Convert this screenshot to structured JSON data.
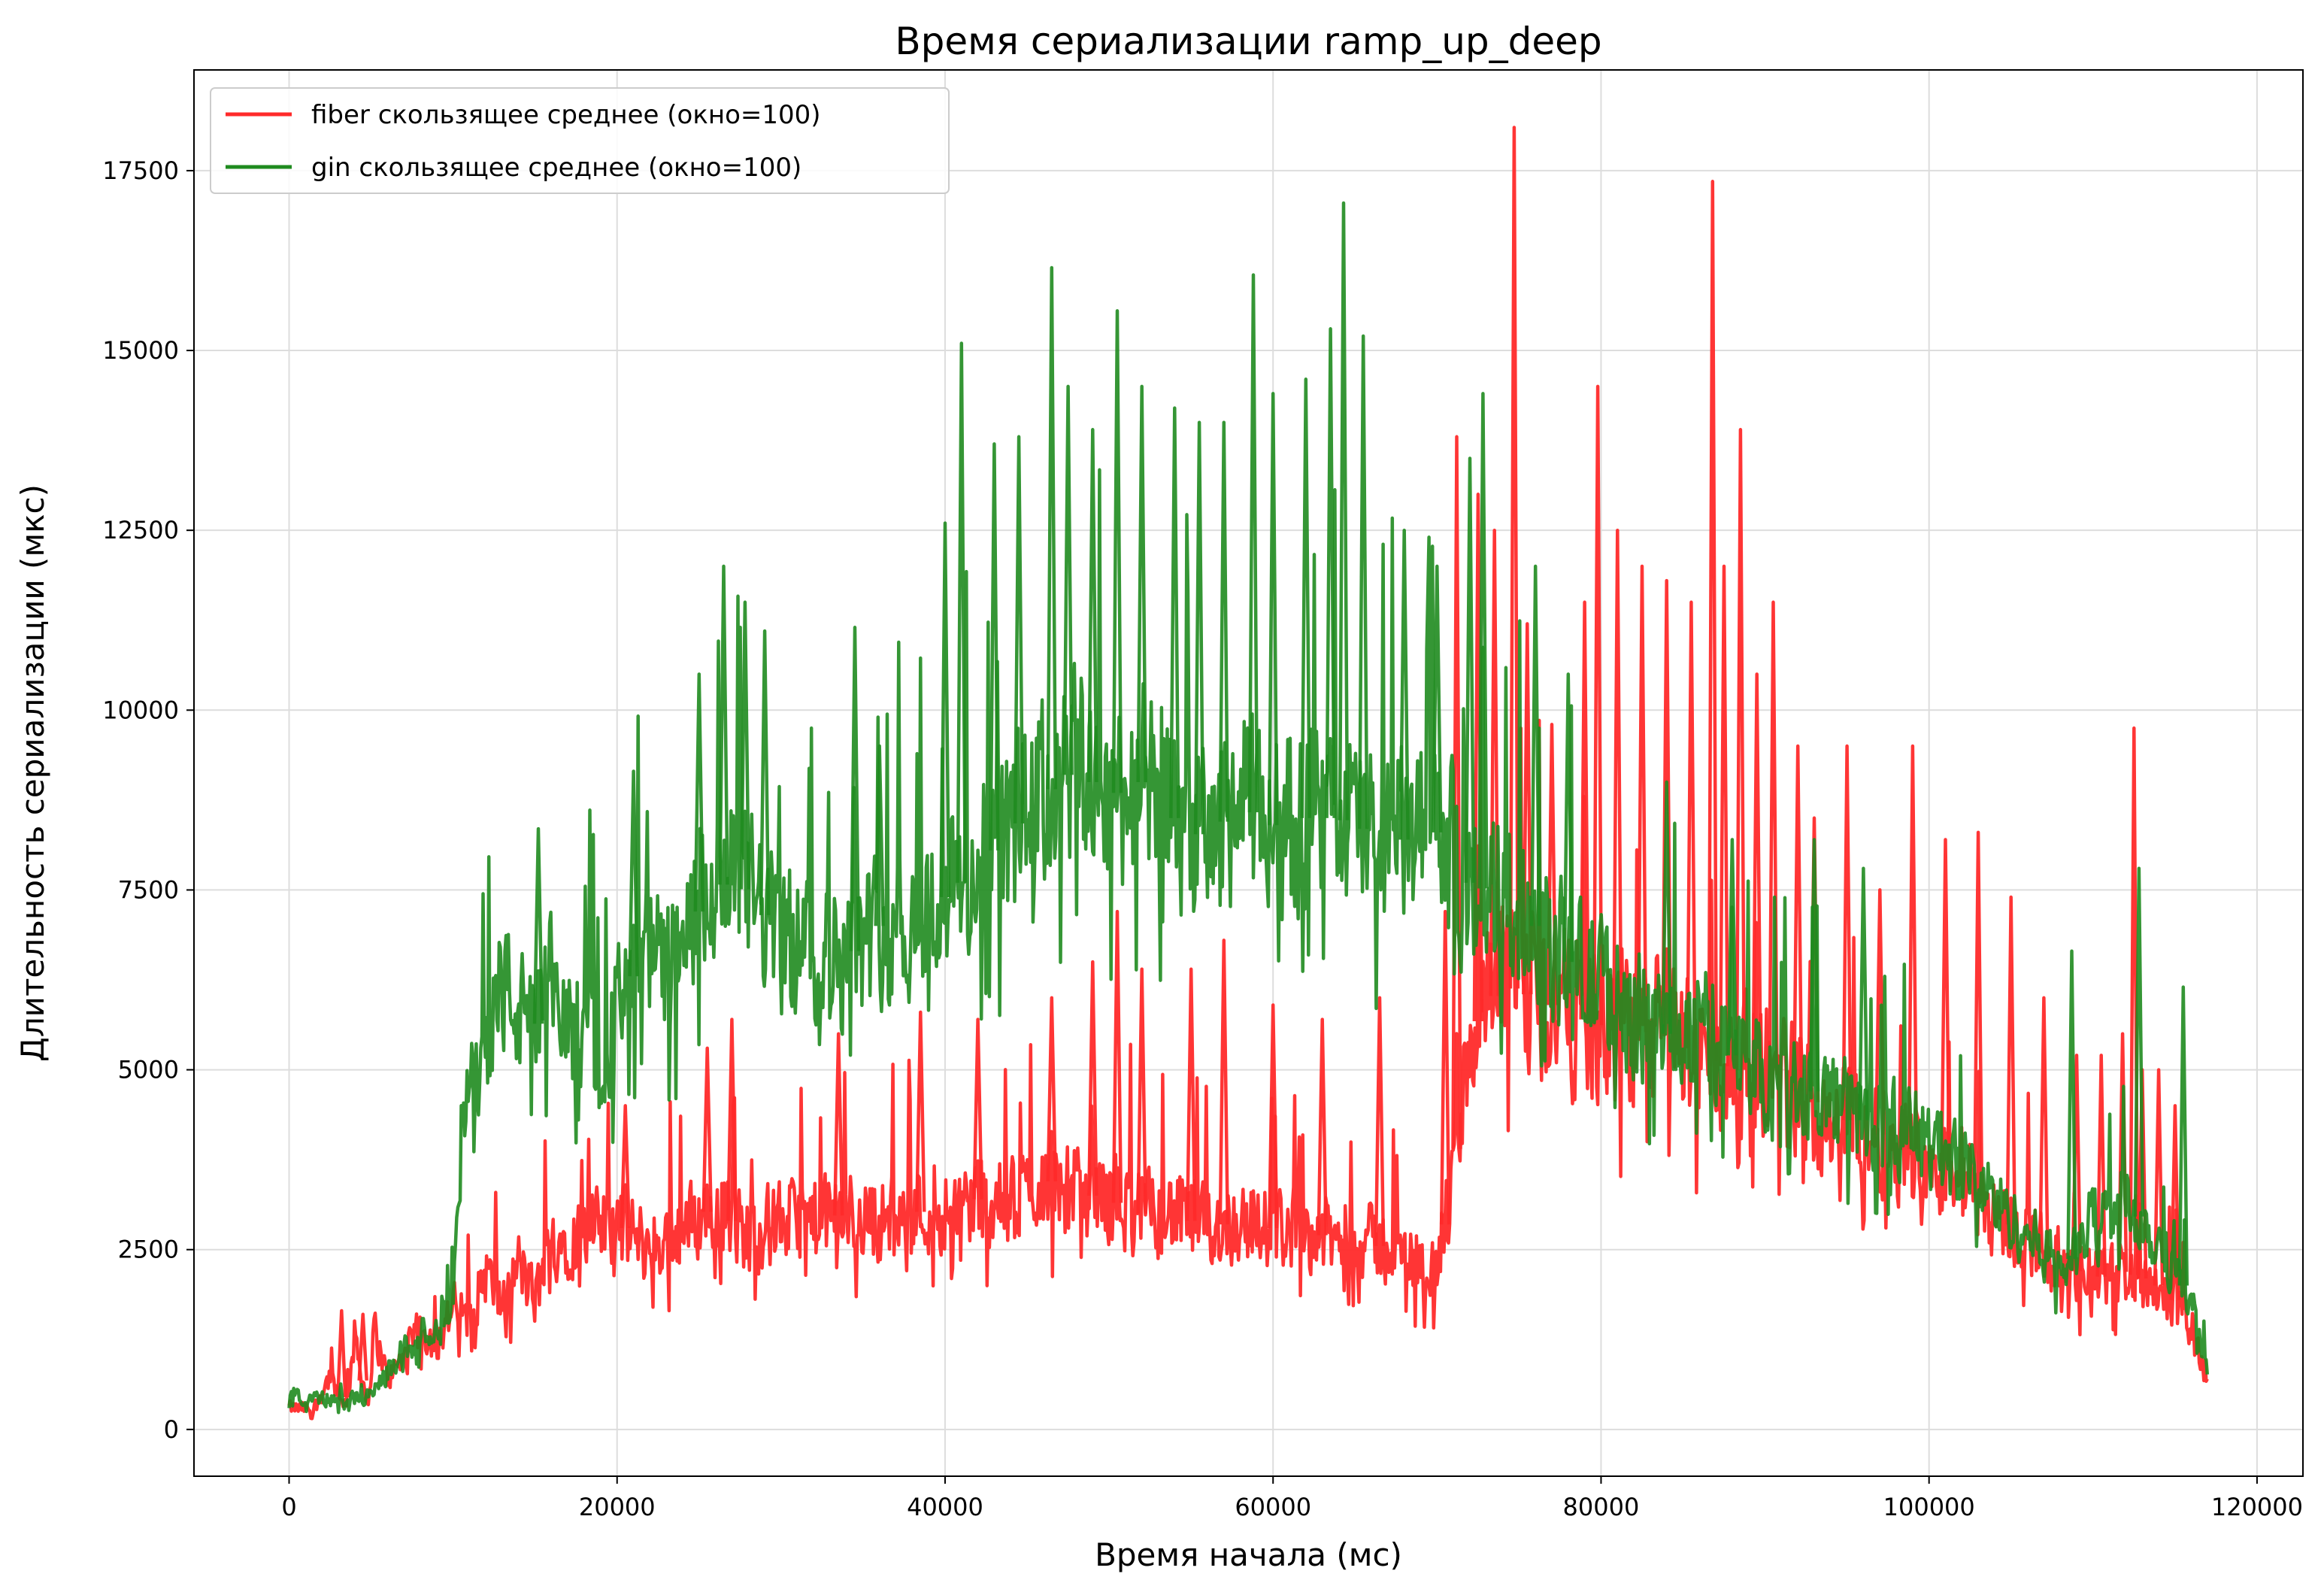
{
  "chart_data": {
    "type": "line",
    "title": "Время сериализации ramp_up_deep",
    "xlabel": "Время начала (мс)",
    "ylabel": "Длительность сериализации (мкс)",
    "xlim": [
      -5800,
      122800
    ],
    "ylim": [
      -650,
      18900
    ],
    "xticks": [
      0,
      20000,
      40000,
      60000,
      80000,
      100000,
      120000
    ],
    "yticks": [
      0,
      2500,
      5000,
      7500,
      10000,
      12500,
      15000,
      17500
    ],
    "grid": true,
    "legend_position": "top-left",
    "series": [
      {
        "name": "fiber скользящее среднее (окно=100)",
        "color": "#ff2a2a",
        "opacity": 0.95,
        "points": [
          [
            0,
            300
          ],
          [
            1500,
            280
          ],
          [
            2500,
            750
          ],
          [
            3500,
            320
          ],
          [
            4000,
            1300
          ],
          [
            4800,
            310
          ],
          [
            5200,
            1400
          ],
          [
            6000,
            700
          ],
          [
            7000,
            1000
          ],
          [
            8000,
            1400
          ],
          [
            9000,
            1200
          ],
          [
            10000,
            1700
          ],
          [
            11000,
            1500
          ],
          [
            12000,
            2200
          ],
          [
            13000,
            1700
          ],
          [
            14000,
            2300
          ],
          [
            15000,
            1800
          ],
          [
            16000,
            2600
          ],
          [
            18000,
            2700
          ],
          [
            20000,
            2900
          ],
          [
            22000,
            2500
          ],
          [
            24000,
            2800
          ],
          [
            26000,
            3100
          ],
          [
            28000,
            2700
          ],
          [
            30000,
            2900
          ],
          [
            32000,
            2900
          ],
          [
            34000,
            3000
          ],
          [
            36000,
            2900
          ],
          [
            38000,
            3000
          ],
          [
            40000,
            3100
          ],
          [
            42000,
            3200
          ],
          [
            44000,
            3100
          ],
          [
            46000,
            3500
          ],
          [
            48000,
            3300
          ],
          [
            50000,
            3200
          ],
          [
            52000,
            3000
          ],
          [
            54000,
            3000
          ],
          [
            56000,
            2800
          ],
          [
            58000,
            2900
          ],
          [
            60000,
            2800
          ],
          [
            62000,
            2800
          ],
          [
            64000,
            2600
          ],
          [
            66000,
            2600
          ],
          [
            68000,
            2400
          ],
          [
            70000,
            2200
          ],
          [
            71000,
            3500
          ],
          [
            72000,
            5500
          ],
          [
            74000,
            6200
          ],
          [
            76000,
            6000
          ],
          [
            78000,
            5800
          ],
          [
            80000,
            5600
          ],
          [
            82000,
            5500
          ],
          [
            84000,
            5600
          ],
          [
            86000,
            5200
          ],
          [
            88000,
            5000
          ],
          [
            90000,
            5000
          ],
          [
            92000,
            4700
          ],
          [
            94000,
            4400
          ],
          [
            96000,
            4200
          ],
          [
            98000,
            4000
          ],
          [
            100000,
            3800
          ],
          [
            102000,
            3500
          ],
          [
            104000,
            3000
          ],
          [
            106000,
            2700
          ],
          [
            108000,
            2300
          ],
          [
            110000,
            2100
          ],
          [
            112000,
            2200
          ],
          [
            114000,
            2000
          ],
          [
            115000,
            1800
          ],
          [
            116000,
            1400
          ],
          [
            117000,
            700
          ]
        ],
        "spikes": [
          [
            3200,
            1650
          ],
          [
            4500,
            1600
          ],
          [
            20500,
            4500
          ],
          [
            25500,
            5300
          ],
          [
            27000,
            5700
          ],
          [
            33500,
            5500
          ],
          [
            38500,
            5800
          ],
          [
            42000,
            5700
          ],
          [
            46500,
            6000
          ],
          [
            49000,
            6500
          ],
          [
            50500,
            7200
          ],
          [
            52000,
            6400
          ],
          [
            55000,
            6400
          ],
          [
            57000,
            6800
          ],
          [
            60000,
            5900
          ],
          [
            63000,
            5700
          ],
          [
            66500,
            6000
          ],
          [
            70500,
            7200
          ],
          [
            71200,
            13800
          ],
          [
            72500,
            13000
          ],
          [
            73500,
            12500
          ],
          [
            74700,
            18100
          ],
          [
            75500,
            11200
          ],
          [
            77000,
            9800
          ],
          [
            79000,
            11500
          ],
          [
            79800,
            14500
          ],
          [
            81000,
            12500
          ],
          [
            82500,
            12000
          ],
          [
            84000,
            11800
          ],
          [
            85500,
            11500
          ],
          [
            86800,
            17350
          ],
          [
            87500,
            12000
          ],
          [
            88500,
            13900
          ],
          [
            89500,
            10500
          ],
          [
            90500,
            11500
          ],
          [
            92000,
            9500
          ],
          [
            93000,
            8500
          ],
          [
            95000,
            9500
          ],
          [
            97000,
            7500
          ],
          [
            99000,
            9500
          ],
          [
            101000,
            8200
          ],
          [
            103000,
            8300
          ],
          [
            105000,
            7400
          ],
          [
            107000,
            6000
          ],
          [
            109000,
            5200
          ],
          [
            110500,
            5200
          ],
          [
            111800,
            5500
          ],
          [
            112500,
            9750
          ],
          [
            113000,
            5000
          ],
          [
            114000,
            5000
          ],
          [
            115000,
            4500
          ]
        ]
      },
      {
        "name": "gin скользящее среднее (окно=100)",
        "color": "#1f8b1f",
        "opacity": 0.9,
        "points": [
          [
            0,
            500
          ],
          [
            1000,
            450
          ],
          [
            3000,
            400
          ],
          [
            5000,
            450
          ],
          [
            6000,
            800
          ],
          [
            7000,
            1100
          ],
          [
            8000,
            1300
          ],
          [
            9000,
            1500
          ],
          [
            10000,
            1800
          ],
          [
            10500,
            4000
          ],
          [
            11500,
            5200
          ],
          [
            13000,
            6200
          ],
          [
            14000,
            5800
          ],
          [
            15000,
            5500
          ],
          [
            16000,
            6200
          ],
          [
            17000,
            5500
          ],
          [
            18000,
            5700
          ],
          [
            19000,
            5200
          ],
          [
            20000,
            5800
          ],
          [
            21000,
            6300
          ],
          [
            22000,
            6600
          ],
          [
            23000,
            6400
          ],
          [
            24000,
            6600
          ],
          [
            25000,
            7200
          ],
          [
            26000,
            7600
          ],
          [
            28000,
            7500
          ],
          [
            30000,
            6800
          ],
          [
            32000,
            6700
          ],
          [
            34000,
            6500
          ],
          [
            35000,
            6800
          ],
          [
            36000,
            7000
          ],
          [
            38000,
            7000
          ],
          [
            40000,
            7400
          ],
          [
            42000,
            7800
          ],
          [
            44000,
            8300
          ],
          [
            46000,
            8800
          ],
          [
            48000,
            9200
          ],
          [
            50000,
            8800
          ],
          [
            52000,
            9000
          ],
          [
            54000,
            8500
          ],
          [
            56000,
            8200
          ],
          [
            58000,
            8700
          ],
          [
            60000,
            8400
          ],
          [
            62000,
            8500
          ],
          [
            64000,
            8500
          ],
          [
            66000,
            8300
          ],
          [
            68000,
            8200
          ],
          [
            70000,
            8300
          ],
          [
            72000,
            7600
          ],
          [
            74000,
            7400
          ],
          [
            76000,
            7000
          ],
          [
            78000,
            6500
          ],
          [
            80000,
            6200
          ],
          [
            82000,
            5800
          ],
          [
            84000,
            5500
          ],
          [
            86000,
            5600
          ],
          [
            88000,
            5200
          ],
          [
            90000,
            5000
          ],
          [
            92000,
            4800
          ],
          [
            94000,
            4600
          ],
          [
            96000,
            4300
          ],
          [
            98000,
            4200
          ],
          [
            100000,
            4000
          ],
          [
            102000,
            3700
          ],
          [
            104000,
            3200
          ],
          [
            106000,
            2700
          ],
          [
            108000,
            2300
          ],
          [
            109000,
            2400
          ],
          [
            110000,
            3000
          ],
          [
            112000,
            3200
          ],
          [
            114000,
            2600
          ],
          [
            116000,
            1800
          ],
          [
            117000,
            700
          ]
        ],
        "spikes": [
          [
            15200,
            8350
          ],
          [
            21000,
            9150
          ],
          [
            25000,
            10500
          ],
          [
            26500,
            12000
          ],
          [
            27800,
            11500
          ],
          [
            29000,
            11100
          ],
          [
            34500,
            11150
          ],
          [
            36000,
            9500
          ],
          [
            40000,
            12600
          ],
          [
            41000,
            15100
          ],
          [
            43000,
            13700
          ],
          [
            44500,
            13800
          ],
          [
            46500,
            16150
          ],
          [
            47500,
            14500
          ],
          [
            49000,
            13900
          ],
          [
            50500,
            15550
          ],
          [
            52000,
            14500
          ],
          [
            54000,
            14200
          ],
          [
            55500,
            14000
          ],
          [
            57000,
            14000
          ],
          [
            58800,
            16050
          ],
          [
            60000,
            14400
          ],
          [
            62000,
            14600
          ],
          [
            63500,
            15300
          ],
          [
            64300,
            17050
          ],
          [
            65500,
            15200
          ],
          [
            68000,
            12500
          ],
          [
            70000,
            12000
          ],
          [
            72000,
            13500
          ],
          [
            72800,
            14400
          ],
          [
            76000,
            12000
          ],
          [
            78000,
            10500
          ],
          [
            84000,
            9000
          ],
          [
            88000,
            8200
          ],
          [
            93000,
            8200
          ],
          [
            96000,
            7800
          ],
          [
            108700,
            6650
          ],
          [
            112800,
            7800
          ],
          [
            115500,
            6150
          ]
        ]
      }
    ]
  }
}
